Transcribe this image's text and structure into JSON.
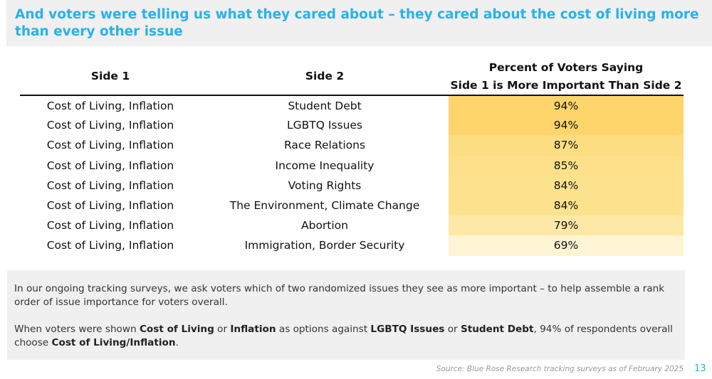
{
  "title": "And voters were telling us what they cared about – they cared about the cost of living more than every other issue",
  "table": {
    "headers": {
      "side1": "Side 1",
      "side2": "Side 2",
      "percent_line1": "Percent of Voters Saying",
      "percent_line2": "Side 1 is More Important Than Side 2"
    },
    "rows": [
      {
        "side1": "Cost of Living, Inflation",
        "side2": "Student Debt",
        "percent": "94%",
        "color": "#fdd56a"
      },
      {
        "side1": "Cost of Living, Inflation",
        "side2": "LGBTQ Issues",
        "percent": "94%",
        "color": "#fdd56a"
      },
      {
        "side1": "Cost of Living, Inflation",
        "side2": "Race Relations",
        "percent": "87%",
        "color": "#fddd82"
      },
      {
        "side1": "Cost of Living, Inflation",
        "side2": "Income Inequality",
        "percent": "85%",
        "color": "#fde089"
      },
      {
        "side1": "Cost of Living, Inflation",
        "side2": "Voting Rights",
        "percent": "84%",
        "color": "#fde28e"
      },
      {
        "side1": "Cost of Living, Inflation",
        "side2": "The Environment, Climate Change",
        "percent": "84%",
        "color": "#fde28e"
      },
      {
        "side1": "Cost of Living, Inflation",
        "side2": "Abortion",
        "percent": "79%",
        "color": "#fee8a5"
      },
      {
        "side1": "Cost of Living, Inflation",
        "side2": "Immigration, Border Security",
        "percent": "69%",
        "color": "#fff4d3"
      }
    ]
  },
  "note": {
    "para1": "In our ongoing tracking surveys, we ask voters which of two randomized issues they see as more important – to help assemble a rank order of issue importance for voters overall.",
    "p2_t1": "When voters were shown ",
    "p2_b1": "Cost of Living",
    "p2_t2": " or ",
    "p2_b2": "Inflation",
    "p2_t3": " as options against ",
    "p2_b3": "LGBTQ Issues",
    "p2_t4": " or ",
    "p2_b4": "Student Debt",
    "p2_t5": ", 94% of respondents overall choose ",
    "p2_b5": "Cost of Living/Inflation",
    "p2_t6": "."
  },
  "source": "Source: Blue Rose Research tracking surveys as of February 2025",
  "page_number": "13"
}
